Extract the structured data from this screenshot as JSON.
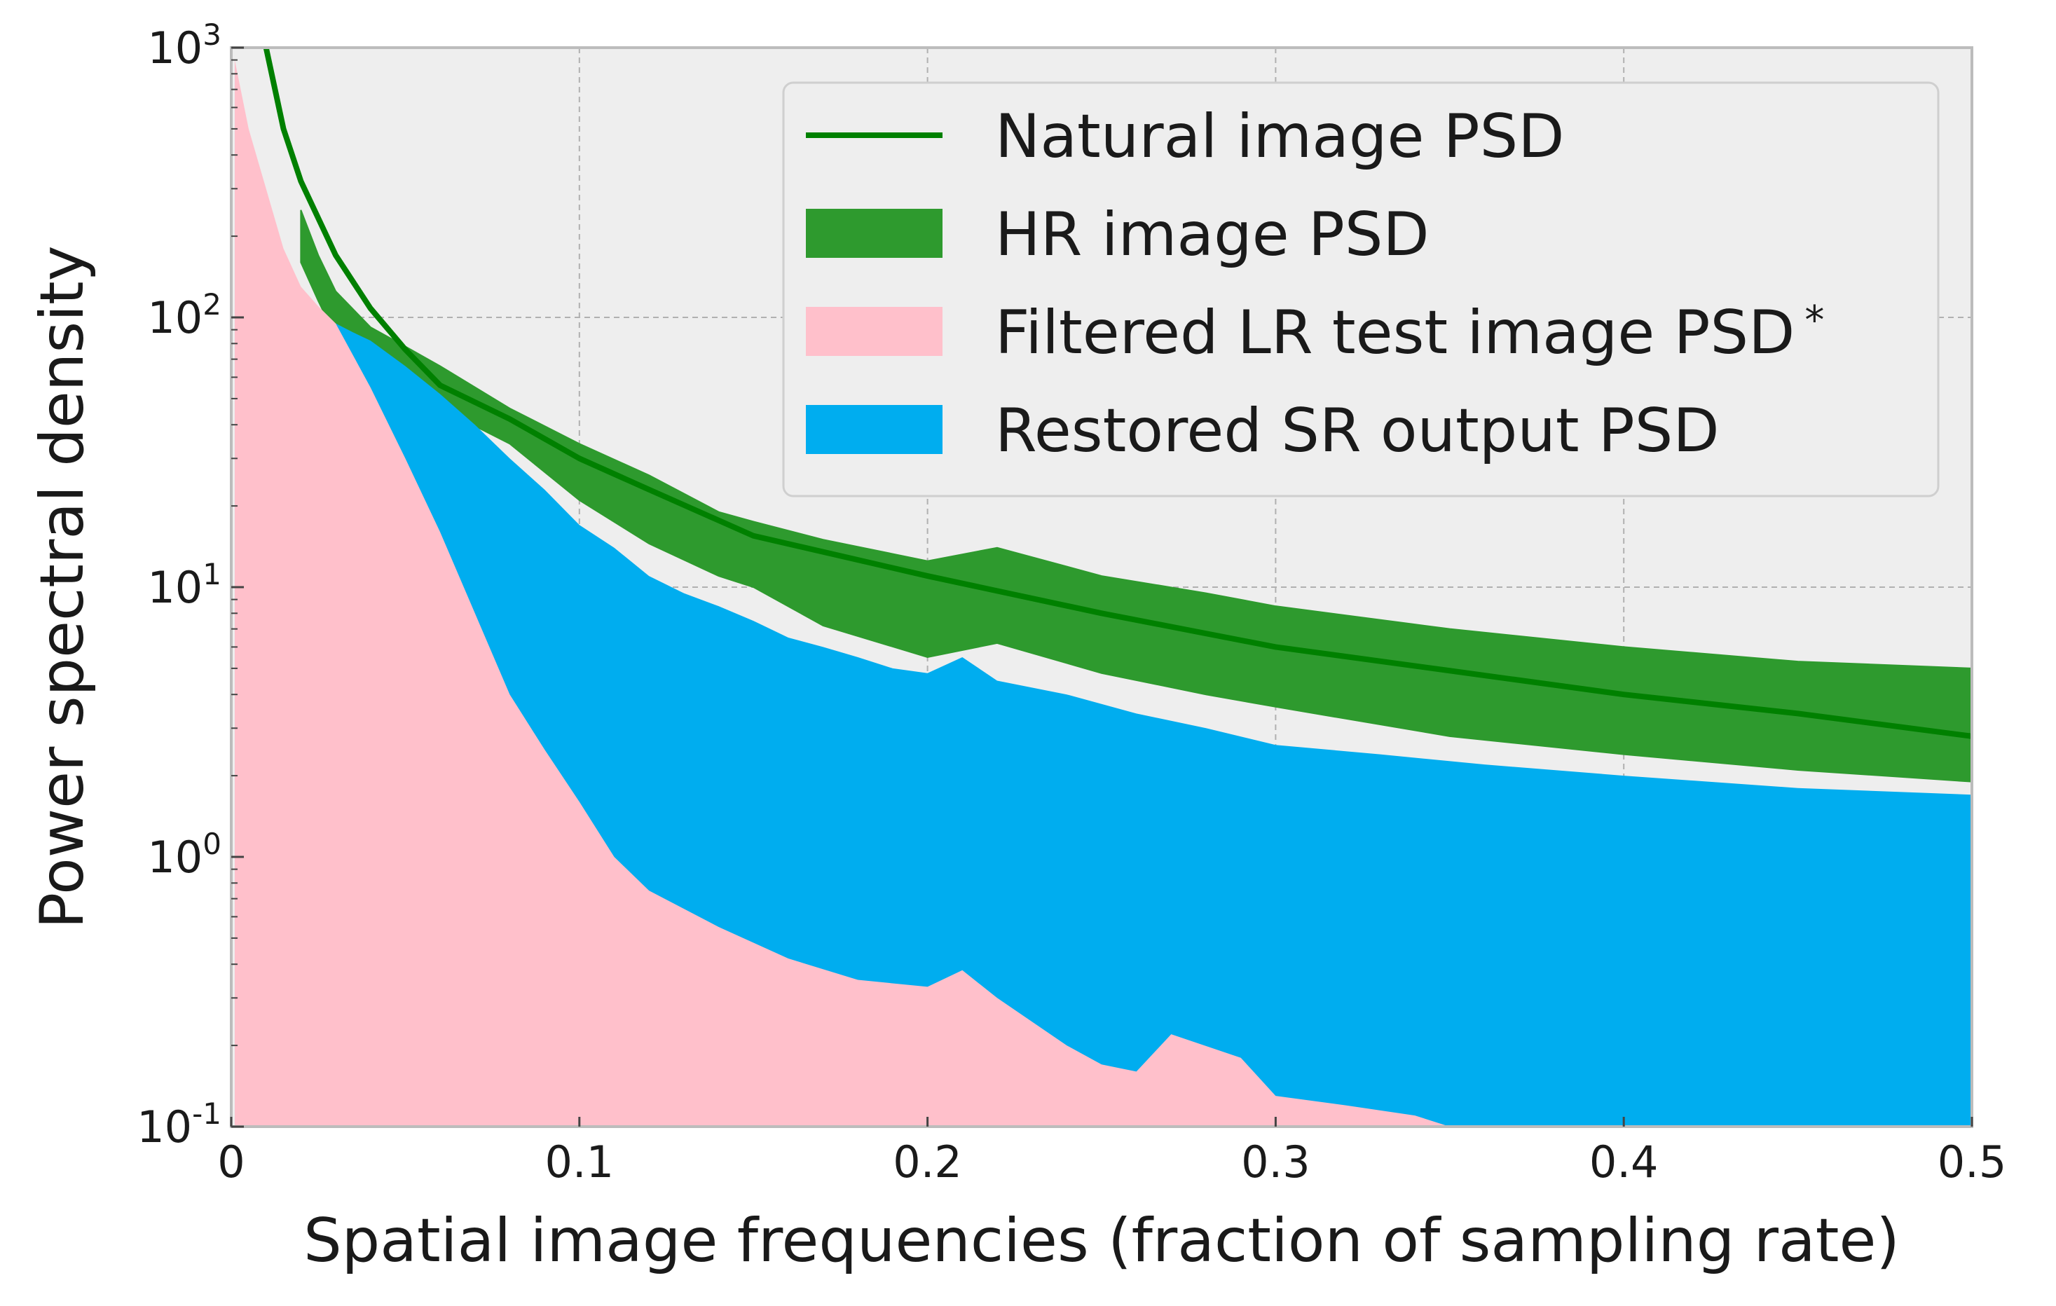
{
  "chart_data": {
    "type": "area",
    "title": "",
    "xlabel": "Spatial image frequencies (fraction of sampling rate)",
    "ylabel": "Power spectral density",
    "xlim": [
      0,
      0.5
    ],
    "ylim": [
      0.1,
      1000
    ],
    "yscale": "log",
    "grid": true,
    "legend_position": "top-right",
    "x_ticks": [
      {
        "value": 0,
        "label": "0"
      },
      {
        "value": 0.1,
        "label": "0.1"
      },
      {
        "value": 0.2,
        "label": "0.2"
      },
      {
        "value": 0.3,
        "label": "0.3"
      },
      {
        "value": 0.4,
        "label": "0.4"
      },
      {
        "value": 0.5,
        "label": "0.5"
      }
    ],
    "y_ticks": [
      {
        "value": 0.1,
        "base": "10",
        "exp": "-1"
      },
      {
        "value": 1,
        "base": "10",
        "exp": "0"
      },
      {
        "value": 10,
        "base": "10",
        "exp": "1"
      },
      {
        "value": 100,
        "base": "10",
        "exp": "2"
      },
      {
        "value": 1000,
        "base": "10",
        "exp": "3"
      }
    ],
    "series": [
      {
        "name": "Natural image PSD",
        "kind": "line",
        "color": "#008000",
        "x": [
          0.01,
          0.015,
          0.02,
          0.03,
          0.04,
          0.05,
          0.06,
          0.08,
          0.1,
          0.12,
          0.15,
          0.2,
          0.25,
          0.3,
          0.35,
          0.4,
          0.45,
          0.5
        ],
        "y": [
          1000,
          500,
          320,
          170,
          108,
          76,
          56,
          42,
          30,
          23,
          15.5,
          11,
          8,
          6,
          4.9,
          4,
          3.4,
          2.8
        ]
      },
      {
        "name": "HR image PSD",
        "kind": "band",
        "color": "#2e9a2e",
        "x": [
          0.02,
          0.025,
          0.03,
          0.04,
          0.05,
          0.06,
          0.08,
          0.1,
          0.12,
          0.14,
          0.15,
          0.17,
          0.2,
          0.22,
          0.25,
          0.28,
          0.3,
          0.35,
          0.4,
          0.45,
          0.5
        ],
        "upper": [
          250,
          170,
          125,
          92,
          78,
          66,
          46,
          34,
          26,
          19,
          17.5,
          15,
          12.5,
          14,
          11,
          9.5,
          8.5,
          7,
          6,
          5.3,
          5
        ],
        "lower": [
          160,
          115,
          85,
          68,
          58,
          46,
          34,
          21,
          14.5,
          11,
          10,
          7.2,
          5.5,
          6.2,
          4.8,
          4,
          3.6,
          2.8,
          2.4,
          2.1,
          1.9
        ]
      },
      {
        "name": "Filtered LR test image PSD",
        "name_mark": "*",
        "kind": "area",
        "color": "#ffc0cb",
        "x": [
          0.001,
          0.005,
          0.01,
          0.015,
          0.02,
          0.025,
          0.03,
          0.04,
          0.05,
          0.06,
          0.07,
          0.08,
          0.09,
          0.1,
          0.11,
          0.12,
          0.14,
          0.16,
          0.18,
          0.2,
          0.21,
          0.22,
          0.24,
          0.25,
          0.26,
          0.27,
          0.29,
          0.3,
          0.32,
          0.34,
          0.35,
          0.38,
          0.4,
          0.43,
          0.45,
          0.48,
          0.5
        ],
        "y": [
          900,
          500,
          300,
          180,
          130,
          110,
          95,
          55,
          30,
          16,
          8,
          4,
          2.5,
          1.6,
          1.0,
          0.75,
          0.55,
          0.42,
          0.35,
          0.33,
          0.38,
          0.3,
          0.2,
          0.17,
          0.16,
          0.22,
          0.18,
          0.13,
          0.12,
          0.11,
          0.1,
          0.09,
          0.085,
          0.08,
          0.075,
          0.07,
          0.065
        ]
      },
      {
        "name": "Restored SR output PSD",
        "kind": "area",
        "color": "#00adef",
        "x": [
          0.03,
          0.035,
          0.04,
          0.05,
          0.06,
          0.07,
          0.08,
          0.09,
          0.1,
          0.11,
          0.12,
          0.13,
          0.14,
          0.15,
          0.16,
          0.17,
          0.18,
          0.19,
          0.2,
          0.21,
          0.22,
          0.24,
          0.26,
          0.28,
          0.3,
          0.33,
          0.36,
          0.4,
          0.45,
          0.5
        ],
        "y": [
          95,
          88,
          82,
          66,
          52,
          40,
          30,
          23,
          17,
          14,
          11,
          9.5,
          8.5,
          7.5,
          6.5,
          6,
          5.5,
          5,
          4.8,
          5.5,
          4.5,
          4,
          3.4,
          3,
          2.6,
          2.4,
          2.2,
          2,
          1.8,
          1.7
        ]
      }
    ]
  }
}
